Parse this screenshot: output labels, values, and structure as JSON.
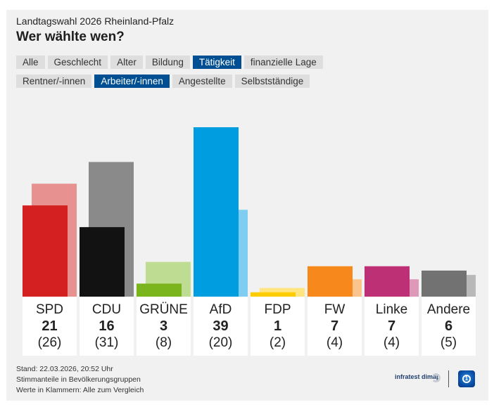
{
  "header": {
    "subtitle": "Landtagswahl 2026 Rheinland-Pfalz",
    "title": "Wer wählte wen?"
  },
  "tabs_primary": [
    {
      "label": "Alle",
      "active": false
    },
    {
      "label": "Geschlecht",
      "active": false
    },
    {
      "label": "Alter",
      "active": false
    },
    {
      "label": "Bildung",
      "active": false
    },
    {
      "label": "Tätigkeit",
      "active": true
    },
    {
      "label": "finanzielle Lage",
      "active": false
    }
  ],
  "tabs_secondary": [
    {
      "label": "Rentner/-innen",
      "active": false
    },
    {
      "label": "Arbeiter/-innen",
      "active": true
    },
    {
      "label": "Angestellte",
      "active": false
    },
    {
      "label": "Selbstständige",
      "active": false
    }
  ],
  "chart_data": {
    "type": "bar",
    "title": "Wer wählte wen?",
    "subtitle": "Landtagswahl 2026 Rheinland-Pfalz",
    "group": "Arbeiter/-innen",
    "categories": [
      "SPD",
      "CDU",
      "GRÜNE",
      "AfD",
      "FDP",
      "FW",
      "Linke",
      "Andere"
    ],
    "series": [
      {
        "name": "Arbeiter/-innen",
        "values": [
          21,
          16,
          3,
          39,
          1,
          7,
          7,
          6
        ]
      },
      {
        "name": "Alle (Vergleich)",
        "values": [
          26,
          31,
          8,
          20,
          2,
          4,
          4,
          5
        ]
      }
    ],
    "colors": [
      "#d42020",
      "#121212",
      "#7ab51d",
      "#009ee0",
      "#ffcc00",
      "#f7891c",
      "#be3075",
      "#727272"
    ],
    "compare_colors": [
      "#e89191",
      "#8a8a8a",
      "#bfdd92",
      "#7fcdf0",
      "#ffe57f",
      "#fbc48d",
      "#de98ba",
      "#b8b8b8"
    ],
    "value_labels": [
      "21",
      "16",
      "3",
      "39",
      "1",
      "7",
      "7",
      "6"
    ],
    "compare_labels": [
      "(26)",
      "(31)",
      "(8)",
      "(20)",
      "(2)",
      "(4)",
      "(4)",
      "(5)"
    ],
    "ylim": [
      0,
      39
    ],
    "grid": false,
    "xlabel": "",
    "ylabel": ""
  },
  "footer": {
    "lines": [
      "Stand: 22.03.2026, 20:52 Uhr",
      "Stimmanteile in Bevölkerungsgruppen",
      "Werte in Klammern: Alle zum Vergleich"
    ],
    "brand": "infratest dimap"
  }
}
